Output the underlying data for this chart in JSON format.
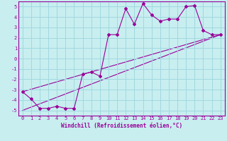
{
  "xlabel": "Windchill (Refroidissement éolien,°C)",
  "background_color": "#c8eef0",
  "grid_color": "#a0d8e0",
  "line_color": "#990099",
  "xlim": [
    -0.5,
    23.5
  ],
  "ylim": [
    -5.5,
    5.5
  ],
  "xticks": [
    0,
    1,
    2,
    3,
    4,
    5,
    6,
    7,
    8,
    9,
    10,
    11,
    12,
    13,
    14,
    15,
    16,
    17,
    18,
    19,
    20,
    21,
    22,
    23
  ],
  "yticks": [
    -5,
    -4,
    -3,
    -2,
    -1,
    0,
    1,
    2,
    3,
    4,
    5
  ],
  "line1_x": [
    0,
    1,
    2,
    3,
    4,
    5,
    6,
    7,
    8,
    9,
    10,
    11,
    12,
    13,
    14,
    15,
    16,
    17,
    18,
    19,
    20,
    21,
    22,
    23
  ],
  "line1_y": [
    -3.2,
    -3.9,
    -4.8,
    -4.8,
    -4.6,
    -4.8,
    -4.8,
    -1.5,
    -1.3,
    -1.7,
    2.3,
    2.3,
    4.8,
    3.3,
    5.3,
    4.2,
    3.6,
    3.8,
    3.8,
    5.0,
    5.1,
    2.7,
    2.3,
    2.3
  ],
  "line2_x": [
    0,
    23
  ],
  "line2_y": [
    -5.0,
    2.3
  ],
  "line3_x": [
    0,
    23
  ],
  "line3_y": [
    -3.2,
    2.3
  ],
  "xlabel_fontsize": 5.5,
  "tick_fontsize": 5.0
}
